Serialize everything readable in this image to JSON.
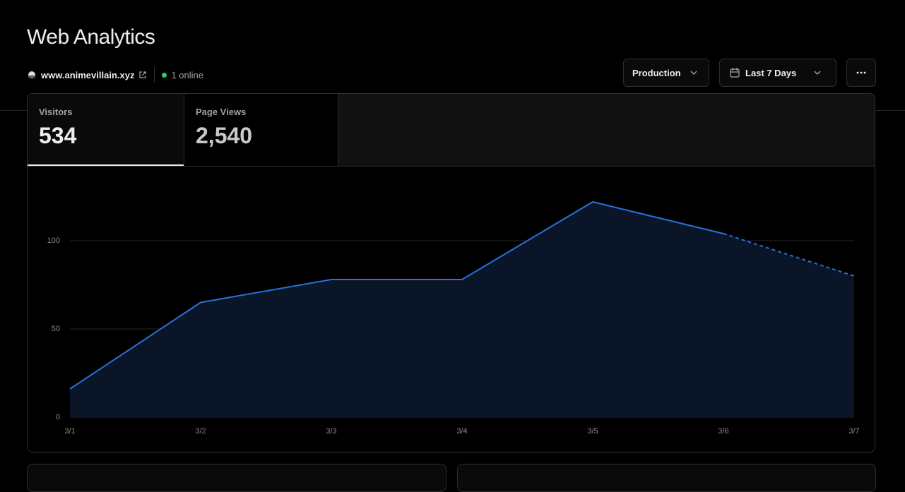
{
  "header": {
    "title": "Web Analytics",
    "domain": "www.animevillain.xyz",
    "online": "1 online"
  },
  "controls": {
    "environment": "Production",
    "range": "Last 7 Days"
  },
  "tabs": [
    {
      "label": "Visitors",
      "value": "534"
    },
    {
      "label": "Page Views",
      "value": "2,540"
    }
  ],
  "chart_data": {
    "type": "area",
    "categories": [
      "3/1",
      "3/2",
      "3/3",
      "3/4",
      "3/5",
      "3/6",
      "3/7"
    ],
    "values": [
      16,
      65,
      78,
      78,
      122,
      104,
      80
    ],
    "color": "#2a6fdb",
    "fill": "#0a1528",
    "ylim": [
      0,
      130
    ],
    "yticks": [
      0,
      50,
      100
    ],
    "grid": true
  }
}
